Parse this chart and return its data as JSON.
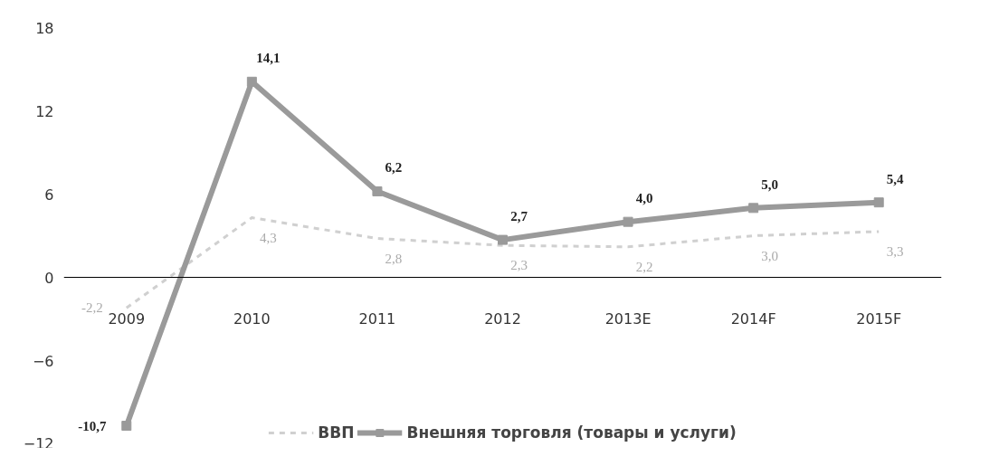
{
  "chart_data": {
    "type": "line",
    "categories": [
      "2009",
      "2010",
      "2011",
      "2012",
      "2013E",
      "2014F",
      "2015F"
    ],
    "series": [
      {
        "name": "ВВП",
        "color": "#d0d0d0",
        "values": [
          -2.2,
          4.3,
          2.8,
          2.3,
          2.2,
          3.0,
          3.3
        ],
        "value_labels": [
          "-2,2",
          "4,3",
          "2,8",
          "2,3",
          "2,2",
          "3,0",
          "3,3"
        ],
        "marker": "none",
        "line_style": "dashed"
      },
      {
        "name": "Внешняя торговля (товары и услуги)",
        "color": "#9a9a9a",
        "values": [
          -10.7,
          14.1,
          6.2,
          2.7,
          4.0,
          5.0,
          5.4
        ],
        "value_labels": [
          "-10,7",
          "14,1",
          "6,2",
          "2,7",
          "4,0",
          "5,0",
          "5,4"
        ],
        "marker": "square",
        "line_style": "solid"
      }
    ],
    "ylim": [
      -12,
      18
    ],
    "yticks": [
      -12,
      -6,
      0,
      6,
      12,
      18
    ],
    "legend": "bottom"
  }
}
